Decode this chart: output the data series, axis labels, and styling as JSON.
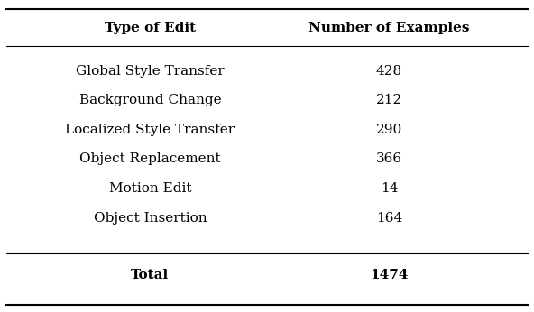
{
  "header": [
    "Type of Edit",
    "Number of Examples"
  ],
  "rows": [
    [
      "Global Style Transfer",
      "428"
    ],
    [
      "Background Change",
      "212"
    ],
    [
      "Localized Style Transfer",
      "290"
    ],
    [
      "Object Replacement",
      "366"
    ],
    [
      "Motion Edit",
      "14"
    ],
    [
      "Object Insertion",
      "164"
    ]
  ],
  "total_label": "Total",
  "total_value": "1474",
  "bg_color": "#ffffff",
  "header_fontsize": 11,
  "body_fontsize": 11,
  "total_fontsize": 11
}
